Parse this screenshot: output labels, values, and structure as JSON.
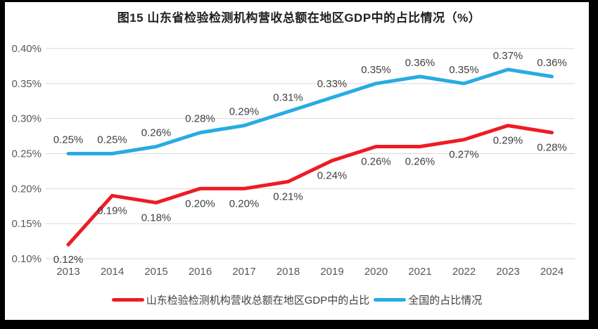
{
  "image_frame": {
    "color": "#000000"
  },
  "title": {
    "text": "图15  山东省检验检测机构营收总额在地区GDP中的占比情况（%）",
    "color": "#1f1f1f"
  },
  "chart_data": {
    "type": "line",
    "title": "图15  山东省检验检测机构营收总额在地区GDP中的占比情况（%）",
    "categories": [
      "2013",
      "2014",
      "2015",
      "2016",
      "2017",
      "2018",
      "2019",
      "2020",
      "2021",
      "2022",
      "2023",
      "2024"
    ],
    "series": [
      {
        "name": "山东检验检测机构营收总额在地区GDP中的占比",
        "color": "#ed1c24",
        "values": [
          0.12,
          0.19,
          0.18,
          0.2,
          0.2,
          0.21,
          0.24,
          0.26,
          0.26,
          0.27,
          0.29,
          0.28
        ],
        "data_label_position": "below"
      },
      {
        "name": "全国的占比情况",
        "color": "#29abe2",
        "values": [
          0.25,
          0.25,
          0.26,
          0.28,
          0.29,
          0.31,
          0.33,
          0.35,
          0.36,
          0.35,
          0.37,
          0.36
        ],
        "data_label_position": "above"
      }
    ],
    "xlabel": "",
    "ylabel": "",
    "ylim": [
      0.1,
      0.4
    ],
    "yticks": [
      0.1,
      0.15,
      0.2,
      0.25,
      0.3,
      0.35,
      0.4
    ],
    "ytick_labels": [
      "0.10%",
      "0.15%",
      "0.20%",
      "0.25%",
      "0.30%",
      "0.35%",
      "0.40%"
    ],
    "value_suffix": "%",
    "grid": "horizontal",
    "legend_position": "bottom",
    "colors": {
      "grid": "#d9d9d9",
      "axis_text": "#595959",
      "data_label_text": "#404040",
      "background": "#ffffff"
    }
  }
}
